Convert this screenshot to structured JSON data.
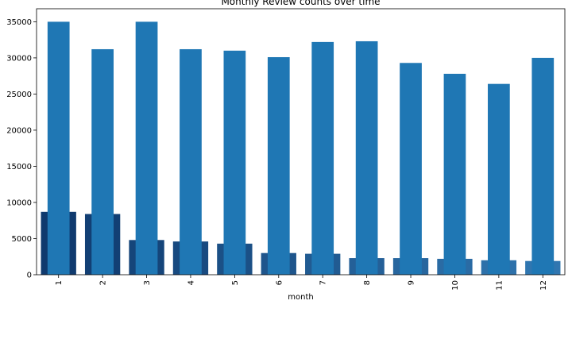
{
  "chart_data": {
    "type": "bar",
    "title": "Monthly Review counts over time",
    "xlabel": "month",
    "ylabel": "",
    "categories": [
      "1",
      "2",
      "3",
      "4",
      "5",
      "6",
      "7",
      "8",
      "9",
      "10",
      "11",
      "12"
    ],
    "ylim": [
      0,
      36800
    ],
    "yticks": [
      0,
      5000,
      10000,
      15000,
      20000,
      25000,
      30000,
      35000
    ],
    "grid": false,
    "series": [
      {
        "color": "#1f77b4",
        "values": [
          35000,
          31200,
          35000,
          31200,
          31000,
          30100,
          32200,
          32300,
          29300,
          27800,
          26400,
          30000
        ]
      },
      {
        "colors": [
          "#0f3a6e",
          "#123f74",
          "#15457a",
          "#184a80",
          "#1b5086",
          "#1e558c",
          "#215b92",
          "#246098",
          "#27669e",
          "#2a6ba4",
          "#2d71aa",
          "#3076b0"
        ],
        "values": [
          8700,
          8400,
          4800,
          4600,
          4300,
          3000,
          2900,
          2300,
          2300,
          2200,
          2000,
          1900
        ]
      }
    ]
  }
}
